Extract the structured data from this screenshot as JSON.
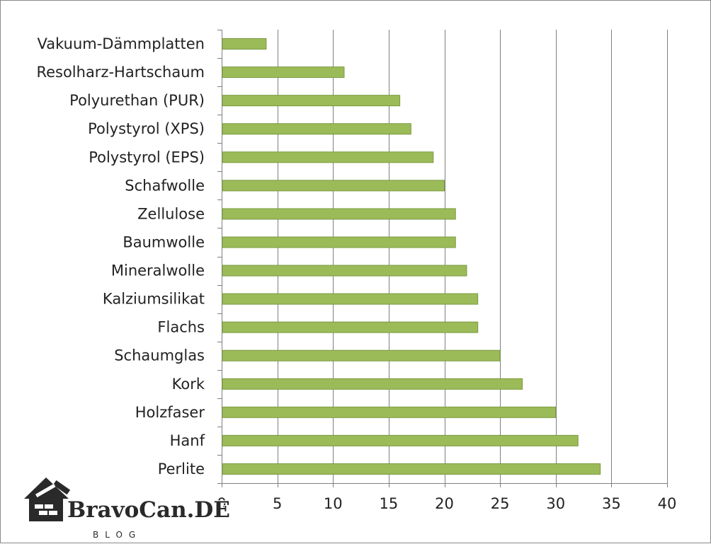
{
  "chart_data": {
    "type": "bar",
    "orientation": "horizontal",
    "categories": [
      "Vakuum-Dämmplatten",
      "Resolharz-Hartschaum",
      "Polyurethan (PUR)",
      "Polystyrol (XPS)",
      "Polystyrol (EPS)",
      "Schafwolle",
      "Zellulose",
      "Baumwolle",
      "Mineralwolle",
      "Kalziumsilikat",
      "Flachs",
      "Schaumglas",
      "Kork",
      "Holzfaser",
      "Hanf",
      "Perlite"
    ],
    "values": [
      4,
      11,
      16,
      17,
      19,
      20,
      21,
      21,
      22,
      23,
      23,
      25,
      27,
      30,
      32,
      34
    ],
    "x_ticks": [
      0,
      5,
      10,
      15,
      20,
      25,
      30,
      35,
      40
    ],
    "xlim": [
      0,
      40
    ],
    "grid": true,
    "legend": "none",
    "bar_color": "#9bbb59",
    "title": "",
    "xlabel": "",
    "ylabel": ""
  },
  "watermark": {
    "brand": "BravoCan.DE",
    "sub": "BLOG"
  }
}
